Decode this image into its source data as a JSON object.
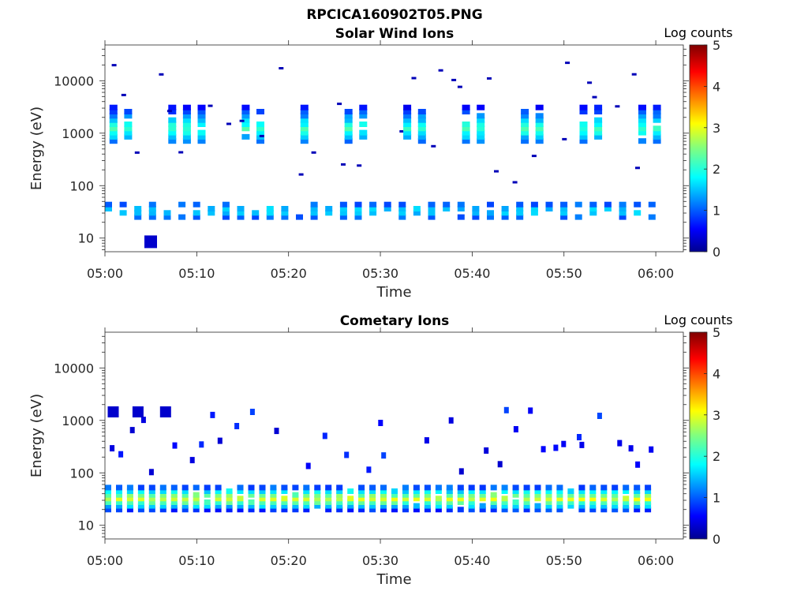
{
  "figure_title": "RPCICA160902T05.PNG",
  "chart_data": [
    {
      "type": "heatmap",
      "title": "Solar Wind Ions",
      "xlabel": "Time",
      "ylabel": "Energy (eV)",
      "x_ticks": [
        "05:00",
        "05:10",
        "05:20",
        "05:30",
        "05:40",
        "05:50",
        "06:00"
      ],
      "x_range_minutes": [
        0,
        63
      ],
      "y_scale": "log",
      "y_ticks": [
        "10",
        "100",
        "1000",
        "10000"
      ],
      "y_range_eV": [
        5.5,
        48000
      ],
      "colorbar": {
        "title": "Log counts",
        "min": 0,
        "max": 5,
        "ticks": [
          "0",
          "1",
          "2",
          "3",
          "4",
          "5"
        ],
        "colormap": "jet"
      },
      "features": [
        {
          "name": "main solar wind beam",
          "energy_eV": [
            700,
            3000
          ],
          "peak_eV": 1300,
          "peak_log_counts": 2.0
        },
        {
          "name": "low energy band",
          "energy_eV": [
            25,
            45
          ],
          "peak_log_counts": 1.8
        },
        {
          "name": "sparse single counts",
          "log_counts": 0.3
        }
      ]
    },
    {
      "type": "heatmap",
      "title": "Cometary Ions",
      "xlabel": "Time",
      "ylabel": "Energy (eV)",
      "x_ticks": [
        "05:00",
        "05:10",
        "05:20",
        "05:30",
        "05:40",
        "05:50",
        "06:00"
      ],
      "x_range_minutes": [
        0,
        63
      ],
      "y_scale": "log",
      "y_ticks": [
        "10",
        "100",
        "1000",
        "10000"
      ],
      "y_range_eV": [
        5.5,
        48000
      ],
      "colorbar": {
        "title": "Log counts",
        "min": 0,
        "max": 5,
        "ticks": [
          "0",
          "1",
          "2",
          "3",
          "4",
          "5"
        ],
        "colormap": "jet"
      },
      "features": [
        {
          "name": "dense low energy band",
          "energy_eV": [
            20,
            55
          ],
          "peak_eV": 33,
          "peak_log_counts": 2.8
        },
        {
          "name": "sparse higher energy counts",
          "energy_eV": [
            100,
            1600
          ],
          "log_counts": 0.5
        }
      ]
    }
  ]
}
